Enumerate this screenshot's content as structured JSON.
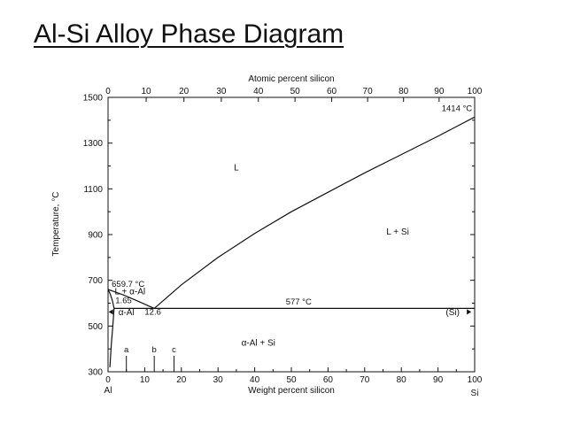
{
  "slide": {
    "title": "Al-Si Alloy Phase Diagram"
  },
  "chart_data": {
    "type": "line",
    "title": "",
    "top_xlabel": "Atomic percent silicon",
    "xlabel": "Weight percent silicon",
    "ylabel": "Temperature, °C",
    "xlim": [
      0,
      100
    ],
    "ylim": [
      300,
      1500
    ],
    "x_ticks": [
      "0",
      "10",
      "20",
      "30",
      "40",
      "50",
      "60",
      "70",
      "80",
      "90",
      "100"
    ],
    "top_ticks": [
      "0",
      "10",
      "20",
      "30",
      "40",
      "50",
      "60",
      "70",
      "80",
      "90",
      "100"
    ],
    "top_tick_weight_positions": [
      0,
      10.4,
      20.7,
      30.9,
      41.0,
      51.0,
      61.0,
      70.8,
      80.6,
      90.3,
      100
    ],
    "y_ticks": [
      "300",
      "500",
      "700",
      "900",
      "1100",
      "1300",
      "1500"
    ],
    "x_end_labels": {
      "left": "Al",
      "right": "Si"
    },
    "grid": false,
    "series": [
      {
        "id": "liquidus-al",
        "points": [
          [
            0,
            660
          ],
          [
            4,
            637
          ],
          [
            8,
            610
          ],
          [
            12.6,
            577
          ]
        ]
      },
      {
        "id": "liquidus-si",
        "points": [
          [
            12.6,
            577
          ],
          [
            20,
            680
          ],
          [
            30,
            800
          ],
          [
            40,
            905
          ],
          [
            50,
            1000
          ],
          [
            60,
            1085
          ],
          [
            70,
            1170
          ],
          [
            80,
            1250
          ],
          [
            90,
            1330
          ],
          [
            100,
            1414
          ]
        ]
      },
      {
        "id": "eutectic",
        "points": [
          [
            1.65,
            577
          ],
          [
            100,
            577
          ]
        ]
      },
      {
        "id": "solidus",
        "points": [
          [
            0,
            660
          ],
          [
            0.6,
            640
          ],
          [
            1.2,
            610
          ],
          [
            1.65,
            577
          ]
        ]
      },
      {
        "id": "solvus",
        "points": [
          [
            1.65,
            577
          ],
          [
            1.3,
            500
          ],
          [
            0.9,
            420
          ],
          [
            0.5,
            320
          ]
        ]
      }
    ],
    "regions": [
      {
        "label": "L",
        "x": 35,
        "y": 1180
      },
      {
        "label": "L + Si",
        "x": 79,
        "y": 900
      },
      {
        "label": "L + α-Al",
        "x": 6,
        "y": 638
      },
      {
        "label": "α-Al",
        "x": 5,
        "y": 548
      },
      {
        "label": "α-Al + Si",
        "x": 41,
        "y": 415
      },
      {
        "label": "(Si)",
        "x": 94,
        "y": 548
      }
    ],
    "annotations": [
      {
        "text": "1414 °C",
        "x": 91,
        "y": 1440
      },
      {
        "text": "659.7 °C",
        "x": 1,
        "y": 672
      },
      {
        "text": "577 °C",
        "x": 52,
        "y": 594
      },
      {
        "text": "1.65",
        "x": 2,
        "y": 600
      },
      {
        "text": "12.6",
        "x": 10,
        "y": 549
      }
    ],
    "composition_markers": [
      {
        "label": "a",
        "x": 5
      },
      {
        "label": "b",
        "x": 12.6
      },
      {
        "label": "c",
        "x": 18
      }
    ]
  }
}
